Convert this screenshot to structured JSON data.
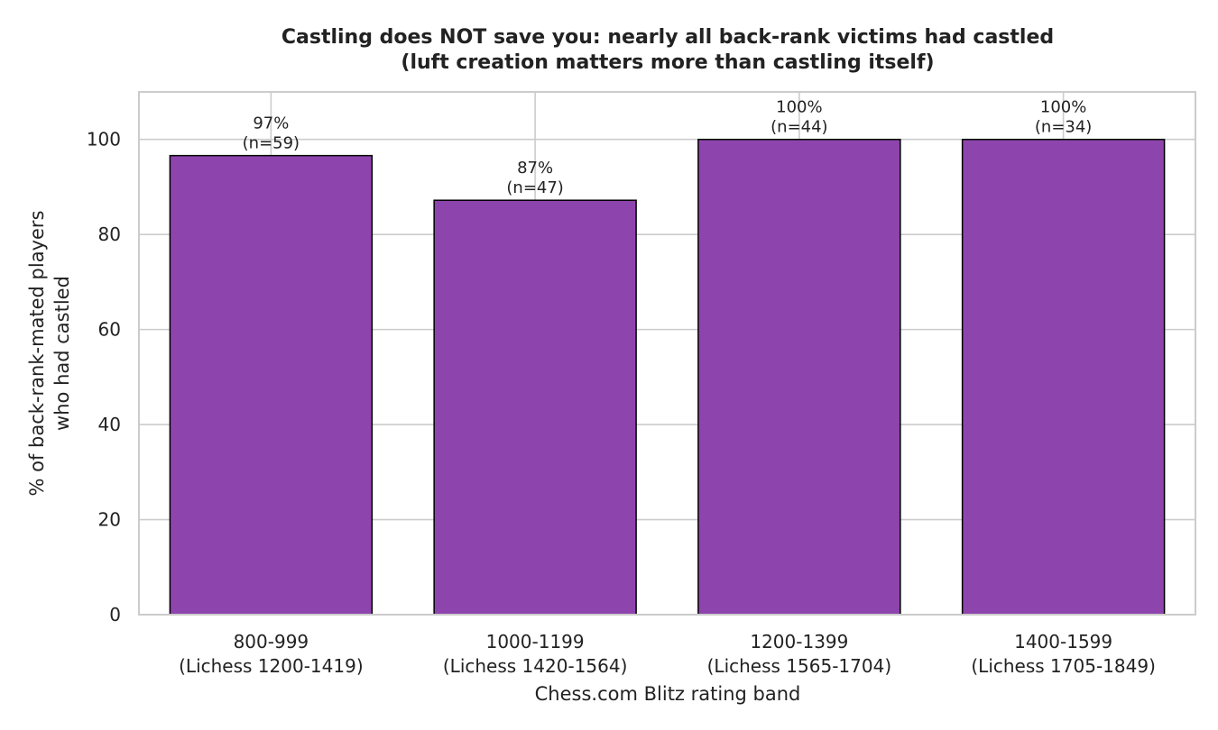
{
  "chart_data": {
    "type": "bar",
    "title_lines": [
      "Castling does NOT save you: nearly all back-rank victims had castled",
      "(luft creation matters more than castling itself)"
    ],
    "xlabel": "Chess.com Blitz rating band",
    "ylabel_lines": [
      "% of back-rank-mated players",
      "who had castled"
    ],
    "categories": [
      [
        "800-999",
        "(Lichess 1200-1419)"
      ],
      [
        "1000-1199",
        "(Lichess 1420-1564)"
      ],
      [
        "1200-1399",
        "(Lichess 1565-1704)"
      ],
      [
        "1400-1599",
        "(Lichess 1705-1849)"
      ]
    ],
    "values": [
      96.6,
      87.2,
      100,
      100
    ],
    "data_labels": [
      [
        "97%",
        "(n=59)"
      ],
      [
        "87%",
        "(n=47)"
      ],
      [
        "100%",
        "(n=44)"
      ],
      [
        "100%",
        "(n=34)"
      ]
    ],
    "ylim": [
      0,
      110
    ],
    "yticks": [
      0,
      20,
      40,
      60,
      80,
      100
    ],
    "grid": true,
    "bar_color": "#8e44ad",
    "bar_edge_color": "#000000",
    "grid_color": "#cccccc"
  }
}
